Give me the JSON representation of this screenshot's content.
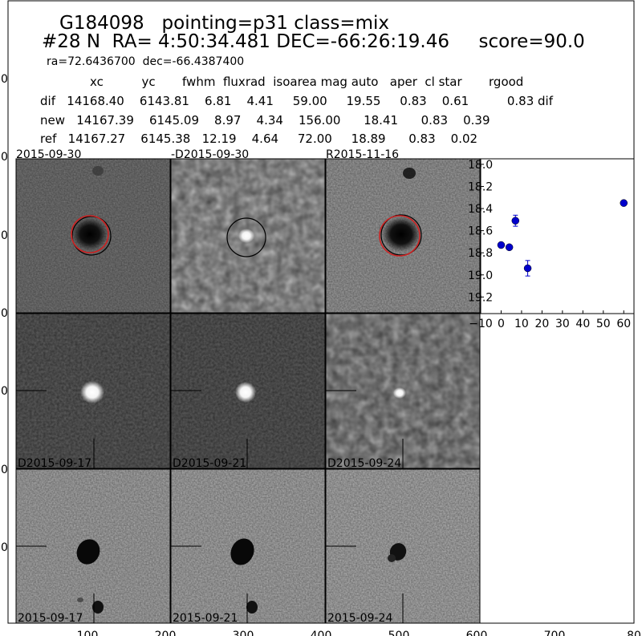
{
  "header": {
    "line1": "G184098   pointing=p31 class=mix",
    "line2": "#28 N  RA= 4:50:34.481 DEC=-66:26:19.46     score=90.0",
    "line3": "ra=72.6436700  dec=-66.4387400",
    "columns": "xc          yc       fwhm  fluxrad  isoarea mag auto   aper  cl star       rgood",
    "row_dif": "dif   14168.40    6143.81    6.81    4.41     59.00     19.55     0.83    0.61          0.83 dif",
    "row_new": "new   14167.39    6145.09    8.97    4.34    156.00      18.41      0.83    0.39",
    "row_ref": "ref   14167.27    6145.38   12.19    4.64     72.00     18.89      0.83    0.02"
  },
  "panels": {
    "top": [
      "2015-09-30",
      "-D2015-09-30",
      "R2015-11-16"
    ],
    "middle": [
      "D2015-09-17",
      "D2015-09-21",
      "D2015-09-24"
    ],
    "bottom": [
      "2015-09-17",
      "2015-09-21",
      "2015-09-24"
    ]
  },
  "outer_axes": {
    "y_ticks": [
      "0",
      "0",
      "0",
      "0",
      "0",
      "0",
      "0"
    ],
    "x_ticks": [
      "100",
      "200",
      "300",
      "400",
      "500",
      "600",
      "700",
      "80"
    ]
  },
  "colors": {
    "point": "#0000cc",
    "ring_red": "#cc2222",
    "ring_black": "#000000"
  },
  "chart_data": {
    "type": "scatter",
    "title": "",
    "xlabel": "",
    "ylabel": "",
    "xlim": [
      -10,
      65
    ],
    "ylim": [
      19.35,
      17.95
    ],
    "y_inverted": true,
    "xticks": [
      -10,
      0,
      10,
      20,
      30,
      40,
      50,
      60
    ],
    "xtick_labels": [
      "−10",
      "0",
      "10",
      "20",
      "30",
      "40",
      "50",
      "60"
    ],
    "yticks": [
      18.0,
      18.2,
      18.4,
      18.6,
      18.8,
      19.0,
      19.2
    ],
    "ytick_labels": [
      "18.0",
      "18.2",
      "18.4",
      "18.6",
      "18.8",
      "19.0",
      "19.2"
    ],
    "series": [
      {
        "points": [
          {
            "x": 0,
            "y": 18.73,
            "err": 0.02
          },
          {
            "x": 4,
            "y": 18.75,
            "err": 0.02
          },
          {
            "x": 7,
            "y": 18.51,
            "err": 0.05
          },
          {
            "x": 13,
            "y": 18.94,
            "err": 0.07
          },
          {
            "x": 60,
            "y": 18.35,
            "err": 0.01
          }
        ]
      }
    ]
  }
}
